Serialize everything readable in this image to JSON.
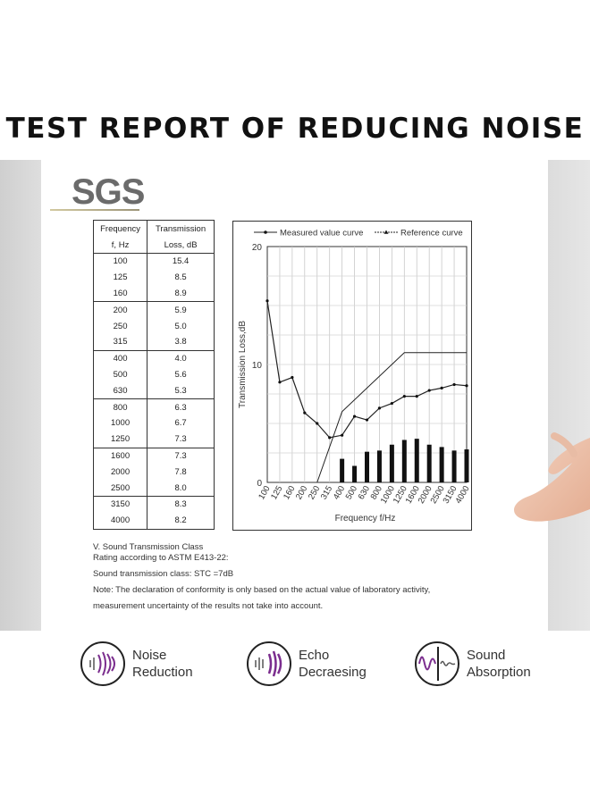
{
  "title": "TEST REPORT OF REDUCING NOISE",
  "logo": {
    "text": "SGS"
  },
  "table": {
    "headers": [
      {
        "line1": "Frequency",
        "line2": "f, Hz"
      },
      {
        "line1": "Transmission",
        "line2": "Loss, dB"
      }
    ],
    "groups": [
      [
        [
          "100",
          "15.4"
        ],
        [
          "125",
          "8.5"
        ],
        [
          "160",
          "8.9"
        ]
      ],
      [
        [
          "200",
          "5.9"
        ],
        [
          "250",
          "5.0"
        ],
        [
          "315",
          "3.8"
        ]
      ],
      [
        [
          "400",
          "4.0"
        ],
        [
          "500",
          "5.6"
        ],
        [
          "630",
          "5.3"
        ]
      ],
      [
        [
          "800",
          "6.3"
        ],
        [
          "1000",
          "6.7"
        ],
        [
          "1250",
          "7.3"
        ]
      ],
      [
        [
          "1600",
          "7.3"
        ],
        [
          "2000",
          "7.8"
        ],
        [
          "2500",
          "8.0"
        ]
      ],
      [
        [
          "3150",
          "8.3"
        ],
        [
          "4000",
          "8.2"
        ]
      ]
    ]
  },
  "chart_data": {
    "type": "line",
    "legend": [
      {
        "label": "Measured value curve",
        "marker": "dot"
      },
      {
        "label": "Reference curve",
        "marker": "triangle"
      }
    ],
    "legend_position": "top",
    "xlabel": "Frequency f/Hz",
    "ylabel": "Transmission Loss,dB",
    "ylim": [
      0,
      20
    ],
    "yticks": [
      "0",
      "10",
      "20"
    ],
    "x": [
      "100",
      "125",
      "160",
      "200",
      "250",
      "315",
      "400",
      "500",
      "630",
      "800",
      "1000",
      "1250",
      "1600",
      "2000",
      "2500",
      "3150",
      "4000"
    ],
    "series": [
      {
        "name": "Measured value curve",
        "values": [
          15.4,
          8.5,
          8.9,
          5.9,
          5.0,
          3.8,
          4.0,
          5.6,
          5.3,
          6.3,
          6.7,
          7.3,
          7.3,
          7.8,
          8.0,
          8.3,
          8.2
        ]
      },
      {
        "name": "Reference curve",
        "points": [
          [
            "250",
            0
          ],
          [
            "400",
            6
          ],
          [
            "1250",
            11
          ],
          [
            "4000",
            11
          ]
        ]
      }
    ],
    "bars": {
      "x": [
        "400",
        "500",
        "630",
        "800",
        "1000",
        "1250",
        "1600",
        "2000",
        "2500",
        "3150",
        "4000"
      ],
      "values": [
        2.0,
        1.4,
        2.6,
        2.7,
        3.2,
        3.6,
        3.7,
        3.2,
        3.0,
        2.7,
        2.8
      ]
    },
    "grid": true
  },
  "notes": {
    "section": "V.    Sound Transmission Class",
    "rating": "Rating according to ASTM E413-22:",
    "stc": "Sound transmission class: STC =7dB",
    "note1": "Note: The declaration of conformity is only based on the actual value of laboratory activity,",
    "note2": "measurement uncertainty of the results not take into account."
  },
  "features": [
    {
      "icon": "noise-reduction-icon",
      "line1": "Noise",
      "line2": "Reduction"
    },
    {
      "icon": "echo-decreasing-icon",
      "line1": "Echo",
      "line2": "Decraesing"
    },
    {
      "icon": "sound-absorption-icon",
      "line1": "Sound",
      "line2": "Absorption"
    }
  ],
  "colors": {
    "accent": "#7b2d8e",
    "ink": "#222222"
  }
}
